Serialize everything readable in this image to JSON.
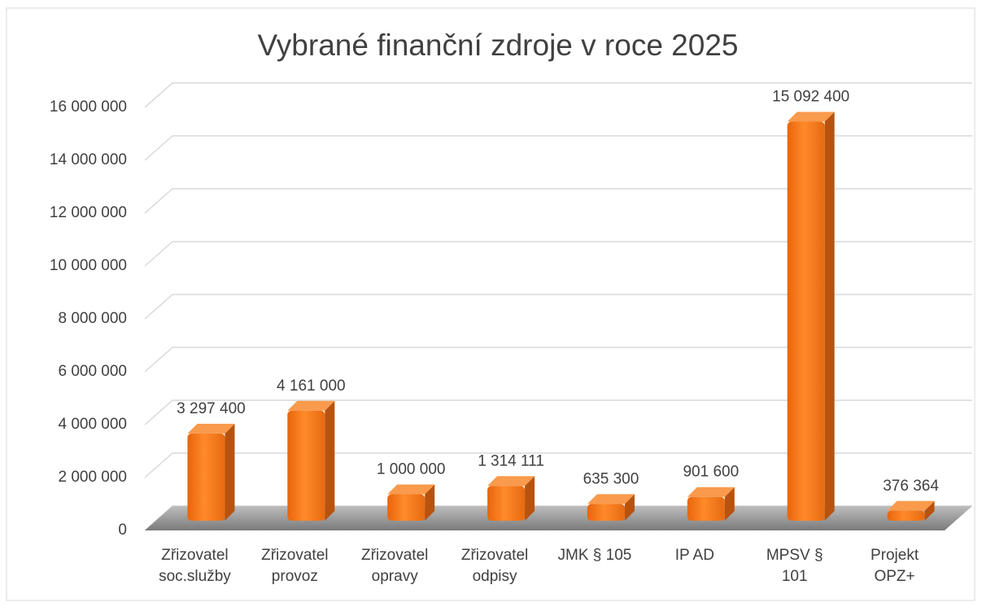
{
  "chart_data": {
    "type": "bar3d",
    "title": "Vybrané finanční zdroje v roce 2025",
    "categories": [
      "Zřizovatel\nsoc.služby",
      "Zřizovatel\nprovoz",
      "Zřizovatel\nopravy",
      "Zřizovatel\nodpisy",
      "JMK § 105",
      "IP AD",
      "MPSV §\n101",
      "Projekt\nOPZ+"
    ],
    "values": [
      3297400,
      4161000,
      1000000,
      1314111,
      635300,
      901600,
      15092400,
      376364
    ],
    "value_labels": [
      "3 297 400",
      "4 161 000",
      "1 000 000",
      "1 314 111",
      "635 300",
      "901 600",
      "15 092 400",
      "376 364"
    ],
    "color": "#f47b1c",
    "ylim": [
      0,
      16000000
    ],
    "yticks": [
      0,
      {
        "value": 2000000,
        "label": "2 000 000"
      },
      {
        "value": 4000000,
        "label": "4 000 000"
      },
      {
        "value": 6000000,
        "label": "6 000 000"
      },
      {
        "value": 8000000,
        "label": "8 000 000"
      },
      {
        "value": 10000000,
        "label": "10 000 000"
      },
      {
        "value": 12000000,
        "label": "12 000 000"
      },
      {
        "value": 14000000,
        "label": "14 000 000"
      },
      {
        "value": 16000000,
        "label": "16 000 000"
      }
    ],
    "grid": true
  }
}
